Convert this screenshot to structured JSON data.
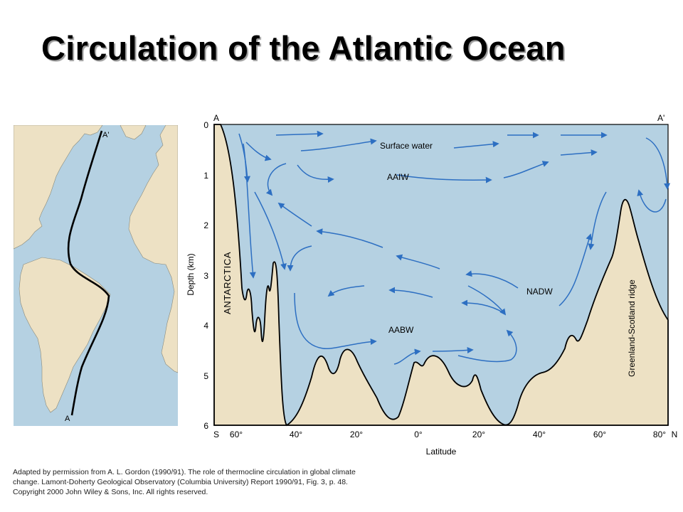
{
  "title": "Circulation of the Atlantic Ocean",
  "map": {
    "label_start": "A",
    "label_end": "A'"
  },
  "section": {
    "label_left": "A",
    "label_right": "A'",
    "y_axis_title": "Depth (km)",
    "y_ticks": [
      "0",
      "1",
      "2",
      "3",
      "4",
      "5",
      "6"
    ],
    "x_axis_title": "Latitude",
    "x_left_end": "S",
    "x_right_end": "N",
    "x_ticks": [
      "60°",
      "40°",
      "20°",
      "0°",
      "20°",
      "40°",
      "60°",
      "80°"
    ],
    "landforms": {
      "antarctica": "ANTARCTICA",
      "ridge": "Greenland-Scotland ridge"
    },
    "water_masses": {
      "surface": "Surface water",
      "aaiw": "AAIW",
      "nadw": "NADW",
      "aabw": "AABW"
    },
    "colors": {
      "water": "#b5d1e2",
      "land": "#ede1c4",
      "arrow": "#2d6fc2",
      "outline": "#000000"
    }
  },
  "credit": {
    "line1": "Adapted by permission from A. L. Gordon (1990/91). The role of thermocline circulation in global climate",
    "line2": "change. Lamont-Doherty Geological Observatory (Columbia University) Report 1990/91, Fig. 3, p. 48.",
    "line3": "Copyright 2000 John Wiley & Sons, Inc. All rights reserved."
  }
}
